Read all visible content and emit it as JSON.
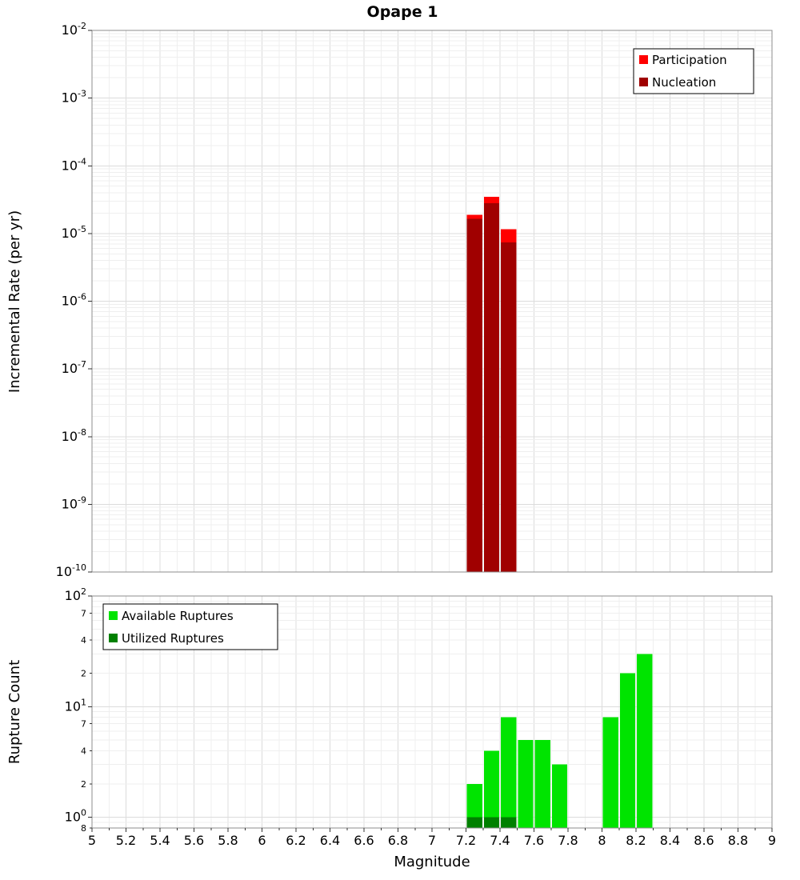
{
  "title": "Opape 1",
  "x_axis": {
    "label": "Magnitude",
    "tick_values": [
      5,
      5.2,
      5.4,
      5.6,
      5.8,
      6,
      6.2,
      6.4,
      6.6,
      6.8,
      7,
      7.2,
      7.4,
      7.6,
      7.8,
      8,
      8.2,
      8.4,
      8.6,
      8.8,
      9
    ],
    "tick_labels": [
      "5",
      "5.2",
      "5.4",
      "5.6",
      "5.8",
      "6",
      "6.2",
      "6.4",
      "6.6",
      "6.8",
      "7",
      "7.2",
      "7.4",
      "7.6",
      "7.8",
      "8",
      "8.2",
      "8.4",
      "8.6",
      "8.8",
      "9"
    ]
  },
  "chart_data": [
    {
      "type": "bar",
      "title": "Opape 1",
      "xlabel": "Magnitude",
      "ylabel": "Incremental Rate (per yr)",
      "x_range": [
        5,
        9
      ],
      "y_scale": "log",
      "y_range": [
        1e-10,
        0.01
      ],
      "y_tick_exponents": [
        -2,
        -3,
        -4,
        -5,
        -6,
        -7,
        -8,
        -9,
        -10
      ],
      "bar_width": 0.1,
      "grid": true,
      "legend_position": "top-right",
      "series": [
        {
          "name": "Participation",
          "color": "#ff0000",
          "x": [
            7.25,
            7.35,
            7.45
          ],
          "values": [
            1.9e-05,
            3.5e-05,
            1.15e-05
          ]
        },
        {
          "name": "Nucleation",
          "color": "#a00000",
          "x": [
            7.25,
            7.35,
            7.45
          ],
          "values": [
            1.65e-05,
            2.8e-05,
            7.4e-06
          ]
        }
      ]
    },
    {
      "type": "bar",
      "xlabel": "Magnitude",
      "ylabel": "Rupture Count",
      "x_range": [
        5,
        9
      ],
      "y_scale": "log",
      "y_range": [
        0.8,
        100
      ],
      "y_ticks": [
        {
          "value": 100,
          "exp": 2
        },
        {
          "value": 70,
          "label": "7"
        },
        {
          "value": 40,
          "label": "4"
        },
        {
          "value": 20,
          "label": "2"
        },
        {
          "value": 10,
          "exp": 1
        },
        {
          "value": 7,
          "label": "7"
        },
        {
          "value": 4,
          "label": "4"
        },
        {
          "value": 2,
          "label": "2"
        },
        {
          "value": 1,
          "exp": 0
        },
        {
          "value": 0.8,
          "label": "8"
        }
      ],
      "bar_width": 0.1,
      "grid": true,
      "legend_position": "top-left",
      "series": [
        {
          "name": "Available Ruptures",
          "color": "#00e400",
          "x": [
            7.25,
            7.35,
            7.45,
            7.55,
            7.65,
            7.75,
            8.05,
            8.15,
            8.25
          ],
          "values": [
            2,
            4,
            8,
            5,
            5,
            3,
            8,
            20,
            30
          ]
        },
        {
          "name": "Utilized Ruptures",
          "color": "#008000",
          "x": [
            7.25,
            7.35,
            7.45
          ],
          "values": [
            1,
            1,
            1
          ]
        }
      ]
    }
  ]
}
